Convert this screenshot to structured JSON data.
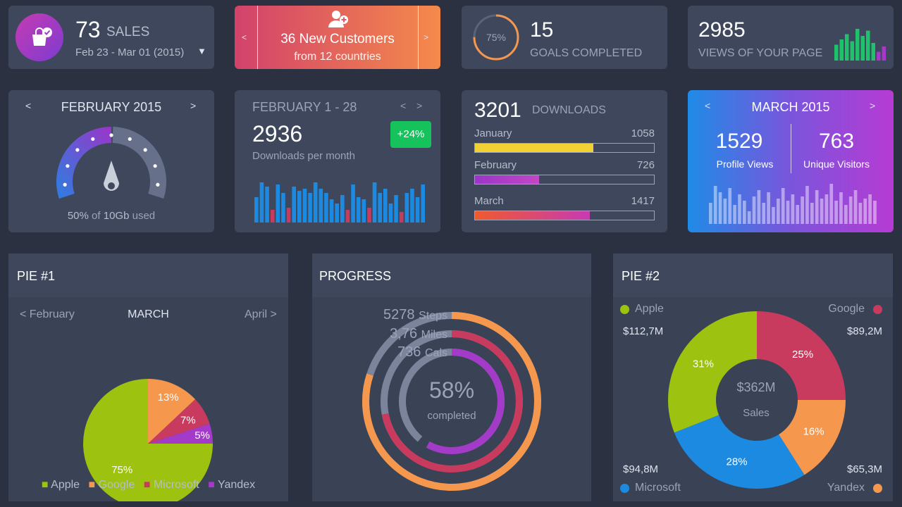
{
  "sales": {
    "count": "73",
    "label": "SALES",
    "date_range": "Feb 23 - Mar 01 (2015)"
  },
  "customers": {
    "title": "36 New Customers",
    "subtitle": "from 12 countries",
    "prev": "<",
    "next": ">"
  },
  "goals": {
    "percent": "75%",
    "percent_value": 75,
    "count": "15",
    "label": "GOALS COMPLETED"
  },
  "views": {
    "count": "2985",
    "label": "VIEWS OF YOUR PAGE",
    "bars": [
      0.45,
      0.6,
      0.75,
      0.55,
      0.9,
      0.7,
      0.85,
      0.5,
      0.25,
      0.4
    ]
  },
  "storage": {
    "month": "FEBRUARY 2015",
    "prev": "<",
    "next": ">",
    "used_value": "50%",
    "of_label": "of",
    "total": "10Gb",
    "used_label": "used",
    "fraction": 0.5
  },
  "downloads_month": {
    "period": "FEBRUARY 1 - 28",
    "prev": "<",
    "next": ">",
    "count": "2936",
    "label": "Downloads per month",
    "badge": "+24%",
    "bars": [
      0.6,
      0.95,
      0.85,
      0.3,
      0.9,
      0.7,
      0.35,
      0.85,
      0.75,
      0.8,
      0.7,
      0.95,
      0.8,
      0.7,
      0.55,
      0.45,
      0.65,
      0.3,
      0.9,
      0.6,
      0.55,
      0.35,
      0.95,
      0.7,
      0.8,
      0.45,
      0.65,
      0.25,
      0.7,
      0.8,
      0.6,
      0.9
    ],
    "highlight": [
      3,
      6,
      17,
      21,
      27
    ]
  },
  "downloads": {
    "count": "3201",
    "label": "DOWNLOADS",
    "rows": [
      {
        "month": "January",
        "value": "1058",
        "fraction": 0.66
      },
      {
        "month": "February",
        "value": "726",
        "fraction": 0.36
      },
      {
        "month": "March",
        "value": "1417",
        "fraction": 0.64
      }
    ]
  },
  "march": {
    "title": "MARCH 2015",
    "prev": "<",
    "next": ">",
    "views_count": "1529",
    "views_label": "Profile Views",
    "visitors_count": "763",
    "visitors_label": "Unique Visitors",
    "bars": [
      0.5,
      0.9,
      0.75,
      0.6,
      0.85,
      0.45,
      0.7,
      0.55,
      0.3,
      0.65,
      0.8,
      0.5,
      0.75,
      0.4,
      0.6,
      0.85,
      0.55,
      0.7,
      0.45,
      0.65,
      0.9,
      0.5,
      0.8,
      0.6,
      0.7,
      0.95,
      0.55,
      0.75,
      0.45,
      0.65,
      0.8,
      0.5,
      0.6,
      0.7,
      0.55
    ]
  },
  "pie1": {
    "title": "PIE #1",
    "prev": "< February",
    "current": "MARCH",
    "next": "April >",
    "legend": [
      {
        "name": "Apple",
        "color": "#9dc20f"
      },
      {
        "name": "Google",
        "color": "#f5984d"
      },
      {
        "name": "Microsoft",
        "color": "#c93b5e"
      },
      {
        "name": "Yandex",
        "color": "#a43ac8"
      }
    ]
  },
  "progress": {
    "title": "PROGRESS",
    "percent": "58%",
    "completed_label": "completed",
    "rings": [
      {
        "value": "5278",
        "unit": "Steps",
        "color": "#f5984d",
        "fraction": 0.8
      },
      {
        "value": "3,76",
        "unit": "Miles",
        "color": "#c93b5e",
        "fraction": 0.72
      },
      {
        "value": "736",
        "unit": "Cals",
        "color": "#a43ac8",
        "fraction": 0.58
      }
    ]
  },
  "pie2": {
    "title": "PIE #2",
    "center_value": "$362M",
    "center_label": "Sales",
    "apple": {
      "name": "Apple",
      "value": "$112,7M",
      "color": "#9dc20f"
    },
    "google": {
      "name": "Google",
      "value": "$89,2M",
      "color": "#c93b5e"
    },
    "microsoft": {
      "name": "Microsoft",
      "value": "$94,8M",
      "color": "#1b8ae0"
    },
    "yandex": {
      "name": "Yandex",
      "value": "$65,3M",
      "color": "#f5984d"
    }
  },
  "chart_data": [
    {
      "type": "pie",
      "categories": [
        "Apple",
        "Google",
        "Microsoft",
        "Yandex"
      ],
      "values": [
        75,
        13,
        7,
        5
      ],
      "labels": [
        "75%",
        "13%",
        "7%",
        "5%"
      ],
      "colors": [
        "#9dc20f",
        "#f5984d",
        "#c93b5e",
        "#a43ac8"
      ]
    },
    {
      "type": "pie",
      "categories": [
        "Google",
        "Yandex",
        "Microsoft",
        "Apple"
      ],
      "values": [
        25,
        16,
        28,
        31
      ],
      "labels": [
        "25%",
        "16%",
        "28%",
        "31%"
      ],
      "colors": [
        "#c93b5e",
        "#f5984d",
        "#1b8ae0",
        "#9dc20f"
      ]
    }
  ]
}
